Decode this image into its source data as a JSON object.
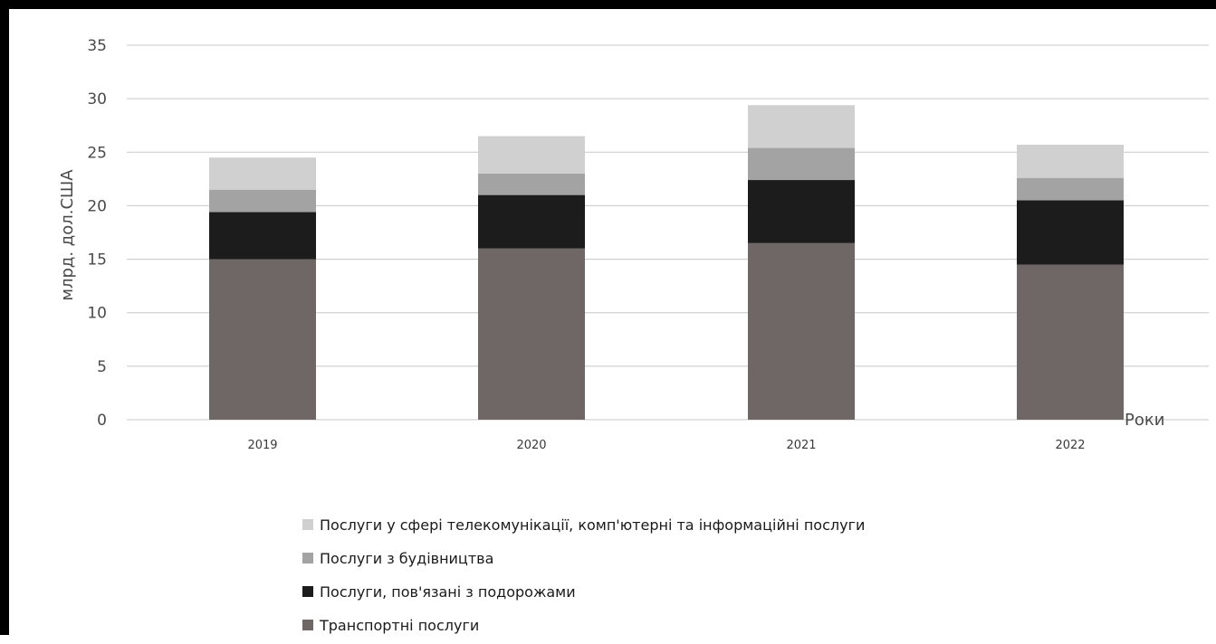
{
  "chart_data": {
    "type": "bar",
    "stacked": true,
    "title": "",
    "xlabel": "Роки",
    "ylabel": "млрд. дол.США",
    "ylim": [
      0,
      35
    ],
    "yticks": [
      "0",
      "5",
      "10",
      "15",
      "20",
      "25",
      "30",
      "35"
    ],
    "grid": true,
    "legend_position": "bottom",
    "categories": [
      "2019",
      "2020",
      "2021",
      "2022"
    ],
    "series": [
      {
        "name": "Транспортні послуги",
        "values": [
          15.0,
          16.0,
          16.5,
          14.5
        ],
        "color": "#6f6666"
      },
      {
        "name": "Послуги, пов'язані з подорожами",
        "values": [
          4.4,
          5.0,
          5.9,
          6.0
        ],
        "color": "#1c1c1c"
      },
      {
        "name": "Послуги з будівництва",
        "values": [
          2.1,
          2.0,
          3.0,
          2.1
        ],
        "color": "#a3a3a3"
      },
      {
        "name": "Послуги у сфері телекомунікації, комп'ютерні та інформаційні послуги",
        "values": [
          3.0,
          3.5,
          4.0,
          3.1
        ],
        "color": "#d0d0d0"
      }
    ]
  }
}
